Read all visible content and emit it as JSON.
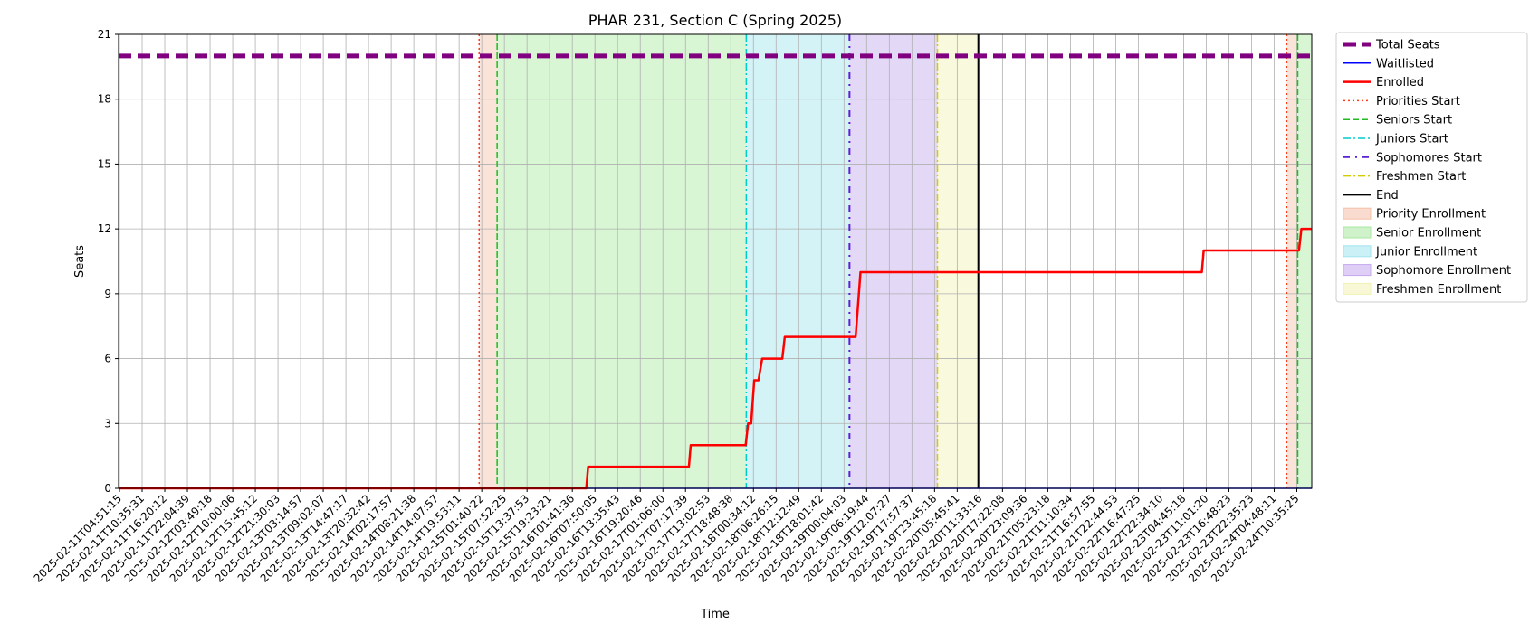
{
  "chart_data": {
    "type": "line",
    "title": "PHAR 231, Section C (Spring 2025)",
    "xlabel": "Time",
    "ylabel": "Seats",
    "ylim": [
      0,
      21
    ],
    "yticks": [
      0,
      3,
      6,
      9,
      12,
      15,
      18,
      21
    ],
    "grid": true,
    "legend_position": "outside-right",
    "x_start": "2025-02-11T04:51:15",
    "x_end": "2025-02-24T18:30:00",
    "x_tick_labels": [
      "2025-02-11T04:51:15",
      "2025-02-11T10:35:31",
      "2025-02-11T16:20:12",
      "2025-02-11T22:04:39",
      "2025-02-12T03:49:18",
      "2025-02-12T10:00:06",
      "2025-02-12T15:45:12",
      "2025-02-12T21:30:03",
      "2025-02-13T03:14:57",
      "2025-02-13T09:02:07",
      "2025-02-13T14:47:17",
      "2025-02-13T20:32:42",
      "2025-02-14T02:17:57",
      "2025-02-14T08:21:38",
      "2025-02-14T14:07:57",
      "2025-02-14T19:53:11",
      "2025-02-15T01:40:22",
      "2025-02-15T07:52:25",
      "2025-02-15T13:37:53",
      "2025-02-15T19:23:21",
      "2025-02-16T01:41:36",
      "2025-02-16T07:50:05",
      "2025-02-16T13:35:43",
      "2025-02-16T19:20:46",
      "2025-02-17T01:06:00",
      "2025-02-17T07:17:39",
      "2025-02-17T13:02:53",
      "2025-02-17T18:48:38",
      "2025-02-18T00:34:12",
      "2025-02-18T06:26:15",
      "2025-02-18T12:12:49",
      "2025-02-18T18:01:42",
      "2025-02-19T00:04:03",
      "2025-02-19T06:19:44",
      "2025-02-19T12:07:27",
      "2025-02-19T17:57:37",
      "2025-02-19T23:45:18",
      "2025-02-20T05:45:41",
      "2025-02-20T11:33:16",
      "2025-02-20T17:22:08",
      "2025-02-20T23:09:36",
      "2025-02-21T05:23:18",
      "2025-02-21T11:10:34",
      "2025-02-21T16:57:55",
      "2025-02-21T22:44:53",
      "2025-02-22T16:47:25",
      "2025-02-22T22:34:10",
      "2025-02-23T04:45:18",
      "2025-02-23T11:01:20",
      "2025-02-23T16:48:23",
      "2025-02-23T22:35:23",
      "2025-02-24T04:48:11",
      "2025-02-24T10:35:25"
    ],
    "series": [
      {
        "name": "Total Seats",
        "color": "#800080",
        "style": "dashed-thick",
        "x": [
          "2025-02-11T04:51:15",
          "2025-02-24T18:30:00"
        ],
        "y": [
          20,
          20
        ]
      },
      {
        "name": "Waitlisted",
        "color": "#0000ff",
        "style": "solid-thin",
        "x": [
          "2025-02-11T04:51:15",
          "2025-02-24T18:30:00"
        ],
        "y": [
          0,
          0
        ]
      },
      {
        "name": "Enrolled",
        "color": "#ff0000",
        "style": "solid-thick",
        "x": [
          "2025-02-11T04:51:15",
          "2025-02-16T12:30:00",
          "2025-02-16T13:00:00",
          "2025-02-17T16:30:00",
          "2025-02-17T17:00:00",
          "2025-02-18T08:00:00",
          "2025-02-18T08:40:00",
          "2025-02-18T09:30:00",
          "2025-02-18T10:20:00",
          "2025-02-18T11:30:00",
          "2025-02-18T12:30:00",
          "2025-02-18T18:00:00",
          "2025-02-18T18:40:00",
          "2025-02-19T14:00:00",
          "2025-02-19T15:20:00",
          "2025-02-23T12:30:00",
          "2025-02-23T13:00:00",
          "2025-02-24T15:00:00",
          "2025-02-24T15:40:00",
          "2025-02-24T18:30:00"
        ],
        "y": [
          0,
          0,
          1,
          1,
          2,
          2,
          3,
          3,
          5,
          5,
          6,
          6,
          7,
          7,
          10,
          10,
          11,
          11,
          12,
          12
        ]
      }
    ],
    "markers": [
      {
        "name": "Priorities Start",
        "color": "#ff3b1a",
        "style": "dotted",
        "x": [
          "2025-02-15T07:15:00",
          "2025-02-24T11:40:00"
        ]
      },
      {
        "name": "Seniors Start",
        "color": "#22bb22",
        "style": "dashed",
        "x": [
          "2025-02-15T12:10:00",
          "2025-02-24T14:40:00"
        ]
      },
      {
        "name": "Juniors Start",
        "color": "#00cccc",
        "style": "dashdot",
        "x": [
          "2025-02-18T08:10:00"
        ]
      },
      {
        "name": "Sophomores Start",
        "color": "#5a1fd6",
        "style": "dashdot-sparse",
        "x": [
          "2025-02-19T12:20:00"
        ]
      },
      {
        "name": "Freshmen Start",
        "color": "#d4cc00",
        "style": "dashdot",
        "x": [
          "2025-02-20T12:20:00"
        ]
      },
      {
        "name": "End",
        "color": "#000000",
        "style": "solid",
        "x": [
          "2025-02-20T23:30:00"
        ]
      }
    ],
    "regions": [
      {
        "name": "Priority Enrollment",
        "color": "#f4c0a8",
        "spans": [
          [
            "2025-02-15T07:15:00",
            "2025-02-15T12:10:00"
          ],
          [
            "2025-02-24T11:40:00",
            "2025-02-24T14:40:00"
          ]
        ]
      },
      {
        "name": "Senior Enrollment",
        "color": "#a8e8a0",
        "spans": [
          [
            "2025-02-15T12:10:00",
            "2025-02-18T08:10:00"
          ],
          [
            "2025-02-24T14:40:00",
            "2025-02-24T18:30:00"
          ]
        ]
      },
      {
        "name": "Junior Enrollment",
        "color": "#a0e4ee",
        "spans": [
          [
            "2025-02-18T08:10:00",
            "2025-02-19T12:20:00"
          ]
        ]
      },
      {
        "name": "Sophomore Enrollment",
        "color": "#c4a8ee",
        "spans": [
          [
            "2025-02-19T12:20:00",
            "2025-02-20T12:20:00"
          ]
        ]
      },
      {
        "name": "Freshmen Enrollment",
        "color": "#f2f2b4",
        "spans": [
          [
            "2025-02-20T12:20:00",
            "2025-02-20T23:30:00"
          ]
        ]
      }
    ],
    "legend": [
      {
        "label": "Total Seats",
        "kind": "line",
        "color": "#800080",
        "style": "dashed-thick"
      },
      {
        "label": "Waitlisted",
        "kind": "line",
        "color": "#0000ff",
        "style": "solid-thin"
      },
      {
        "label": "Enrolled",
        "kind": "line",
        "color": "#ff0000",
        "style": "solid-thick"
      },
      {
        "label": "Priorities Start",
        "kind": "line",
        "color": "#ff3b1a",
        "style": "dotted"
      },
      {
        "label": "Seniors Start",
        "kind": "line",
        "color": "#22bb22",
        "style": "dashed"
      },
      {
        "label": "Juniors Start",
        "kind": "line",
        "color": "#00cccc",
        "style": "dashdot"
      },
      {
        "label": "Sophomores Start",
        "kind": "line",
        "color": "#5a1fd6",
        "style": "dashdot-sparse"
      },
      {
        "label": "Freshmen Start",
        "kind": "line",
        "color": "#d4cc00",
        "style": "dashdot"
      },
      {
        "label": "End",
        "kind": "line",
        "color": "#000000",
        "style": "solid"
      },
      {
        "label": "Priority Enrollment",
        "kind": "patch",
        "color": "#f4c0a8"
      },
      {
        "label": "Senior Enrollment",
        "kind": "patch",
        "color": "#a8e8a0"
      },
      {
        "label": "Junior Enrollment",
        "kind": "patch",
        "color": "#a0e4ee"
      },
      {
        "label": "Sophomore Enrollment",
        "kind": "patch",
        "color": "#c4a8ee"
      },
      {
        "label": "Freshmen Enrollment",
        "kind": "patch",
        "color": "#f2f2b4"
      }
    ]
  }
}
